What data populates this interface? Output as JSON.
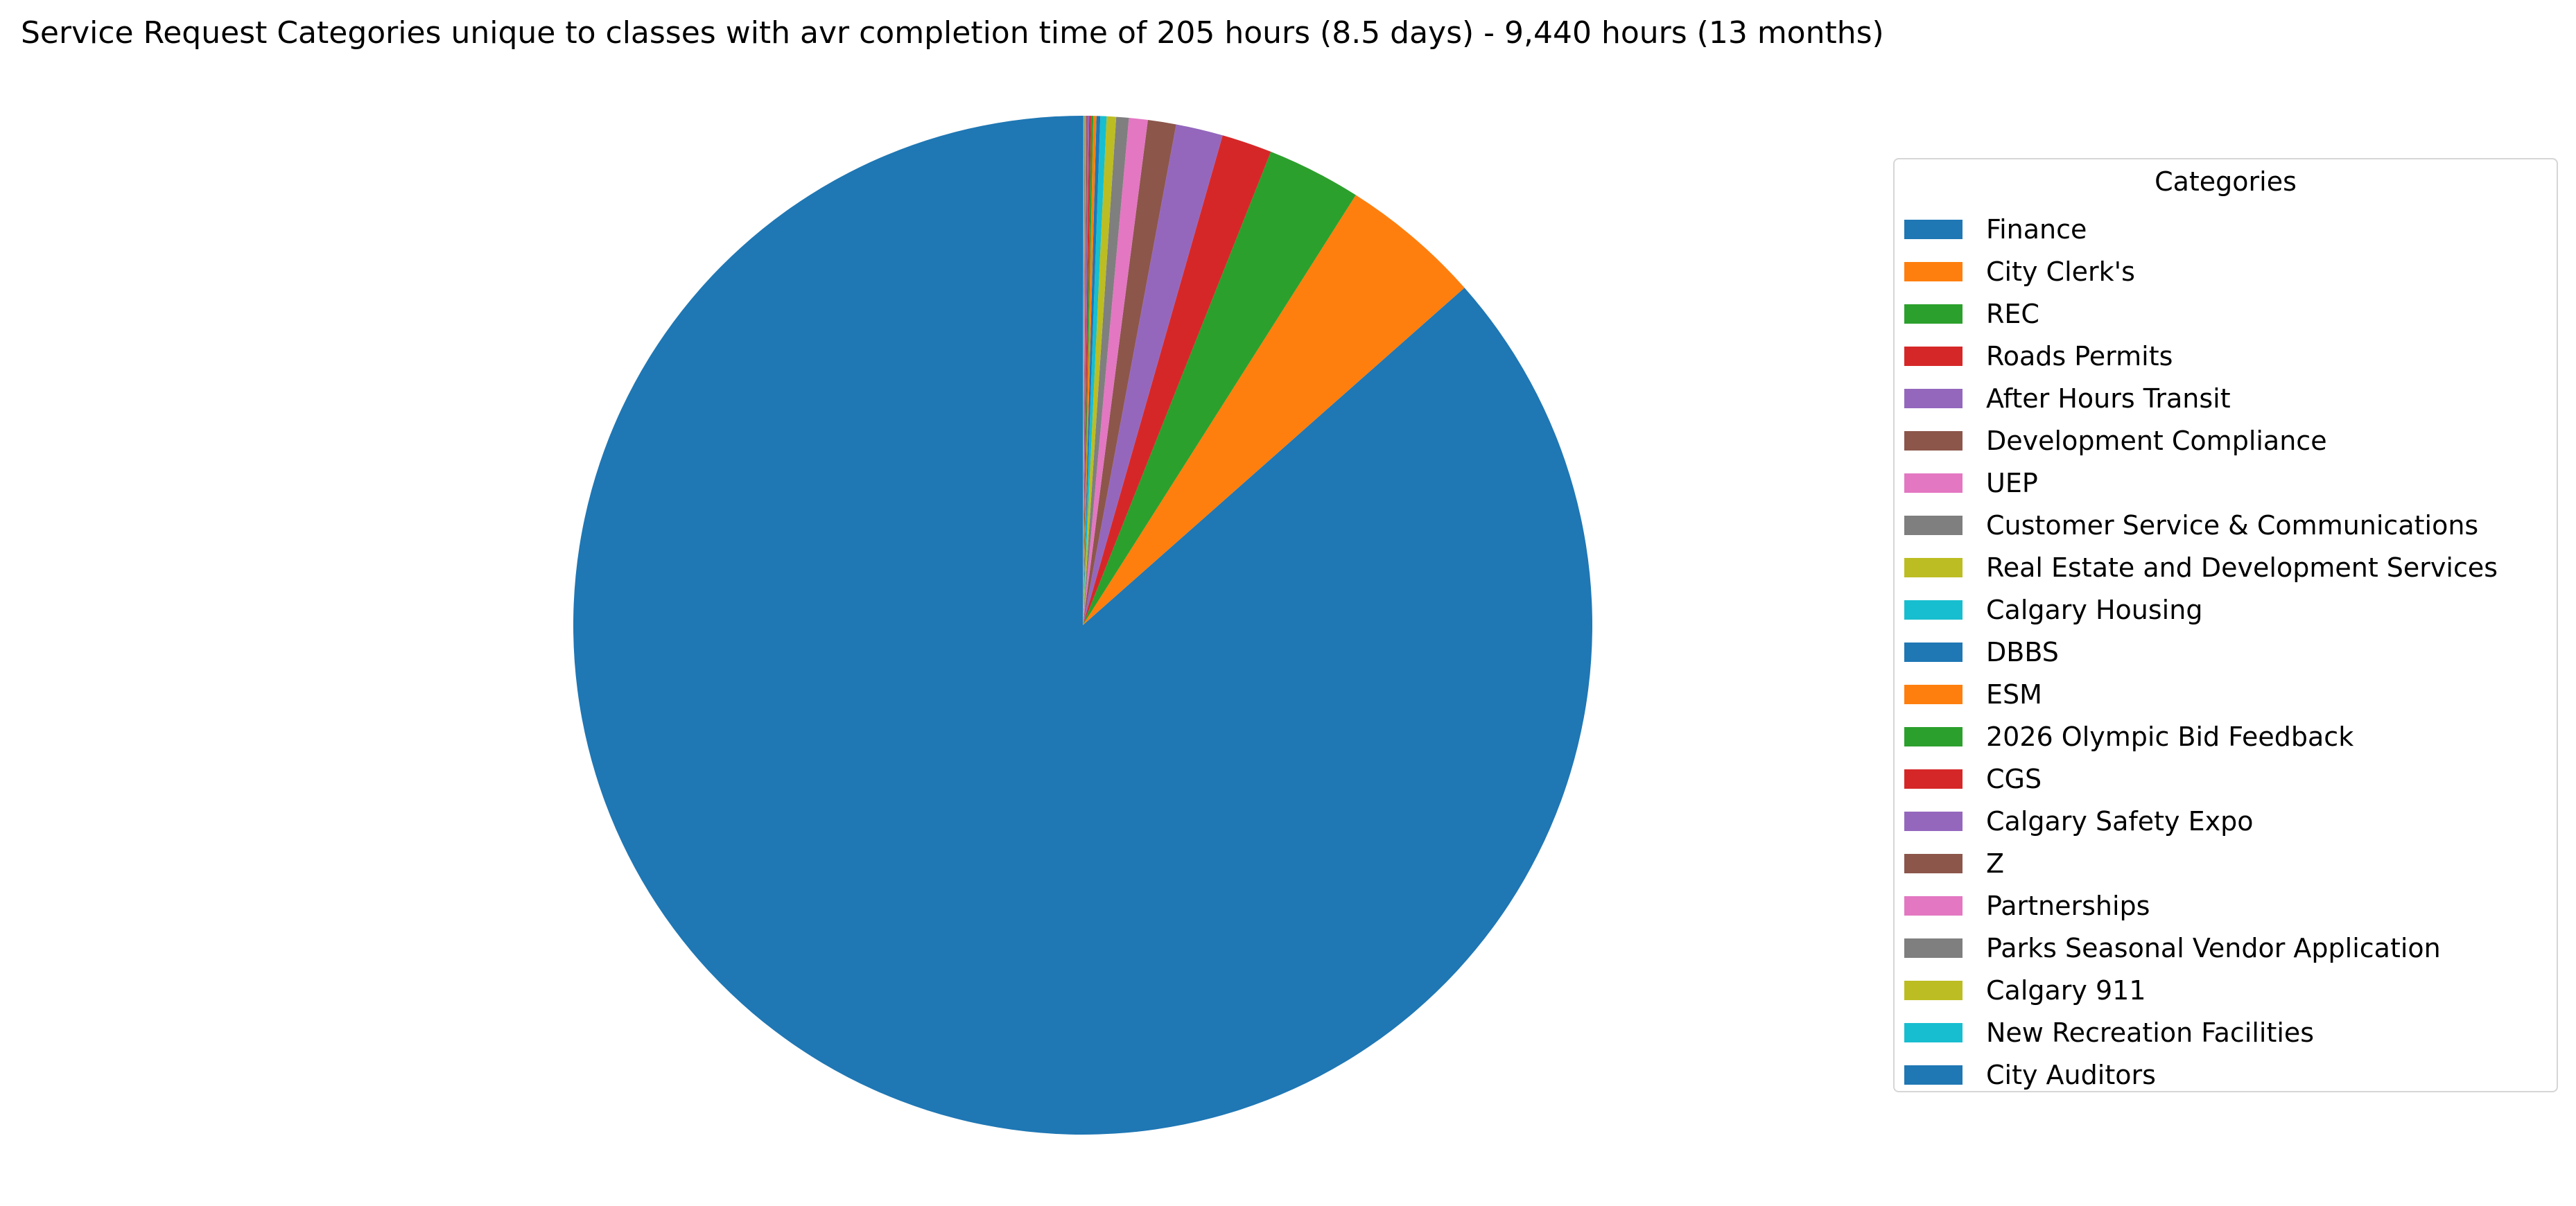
{
  "chart_data": {
    "type": "pie",
    "title": "Service Request Categories unique to classes with avr completion time of 205 hours (8.5 days) - 9,440 hours (13 months)",
    "legend_title": "Categories",
    "legend_position": "right",
    "start_angle_deg": 90,
    "direction": "clockwise-from-top (slices after first go counterclockwise visually ending near top)",
    "slices": [
      {
        "label": "Finance",
        "value": 87.0,
        "color": "#1f77b4"
      },
      {
        "label": "City Clerk's",
        "value": 4.5,
        "color": "#ff7f0e"
      },
      {
        "label": "REC",
        "value": 3.0,
        "color": "#2ca02c"
      },
      {
        "label": "Roads Permits",
        "value": 1.6,
        "color": "#d62728"
      },
      {
        "label": "After Hours Transit",
        "value": 1.5,
        "color": "#9467bd"
      },
      {
        "label": "Development Compliance",
        "value": 0.9,
        "color": "#8c564b"
      },
      {
        "label": "UEP",
        "value": 0.6,
        "color": "#e377c2"
      },
      {
        "label": "Customer Service & Communications",
        "value": 0.4,
        "color": "#7f7f7f"
      },
      {
        "label": "Real Estate and Development Services",
        "value": 0.3,
        "color": "#bcbd22"
      },
      {
        "label": "Calgary Housing",
        "value": 0.2,
        "color": "#17becf"
      },
      {
        "label": "DBBS",
        "value": 0.12,
        "color": "#1f77b4"
      },
      {
        "label": "ESM",
        "value": 0.1,
        "color": "#ff7f0e"
      },
      {
        "label": "2026 Olympic Bid Feedback",
        "value": 0.07,
        "color": "#2ca02c"
      },
      {
        "label": "CGS",
        "value": 0.06,
        "color": "#d62728"
      },
      {
        "label": "Calgary Safety Expo",
        "value": 0.05,
        "color": "#9467bd"
      },
      {
        "label": "Z",
        "value": 0.04,
        "color": "#8c564b"
      },
      {
        "label": "Partnerships",
        "value": 0.03,
        "color": "#e377c2"
      },
      {
        "label": "Parks Seasonal Vendor Application",
        "value": 0.03,
        "color": "#7f7f7f"
      },
      {
        "label": "Calgary 911",
        "value": 0.02,
        "color": "#bcbd22"
      },
      {
        "label": "New Recreation Facilities",
        "value": 0.02,
        "color": "#17becf"
      },
      {
        "label": "City Auditors",
        "value": 0.01,
        "color": "#1f77b4"
      }
    ]
  }
}
